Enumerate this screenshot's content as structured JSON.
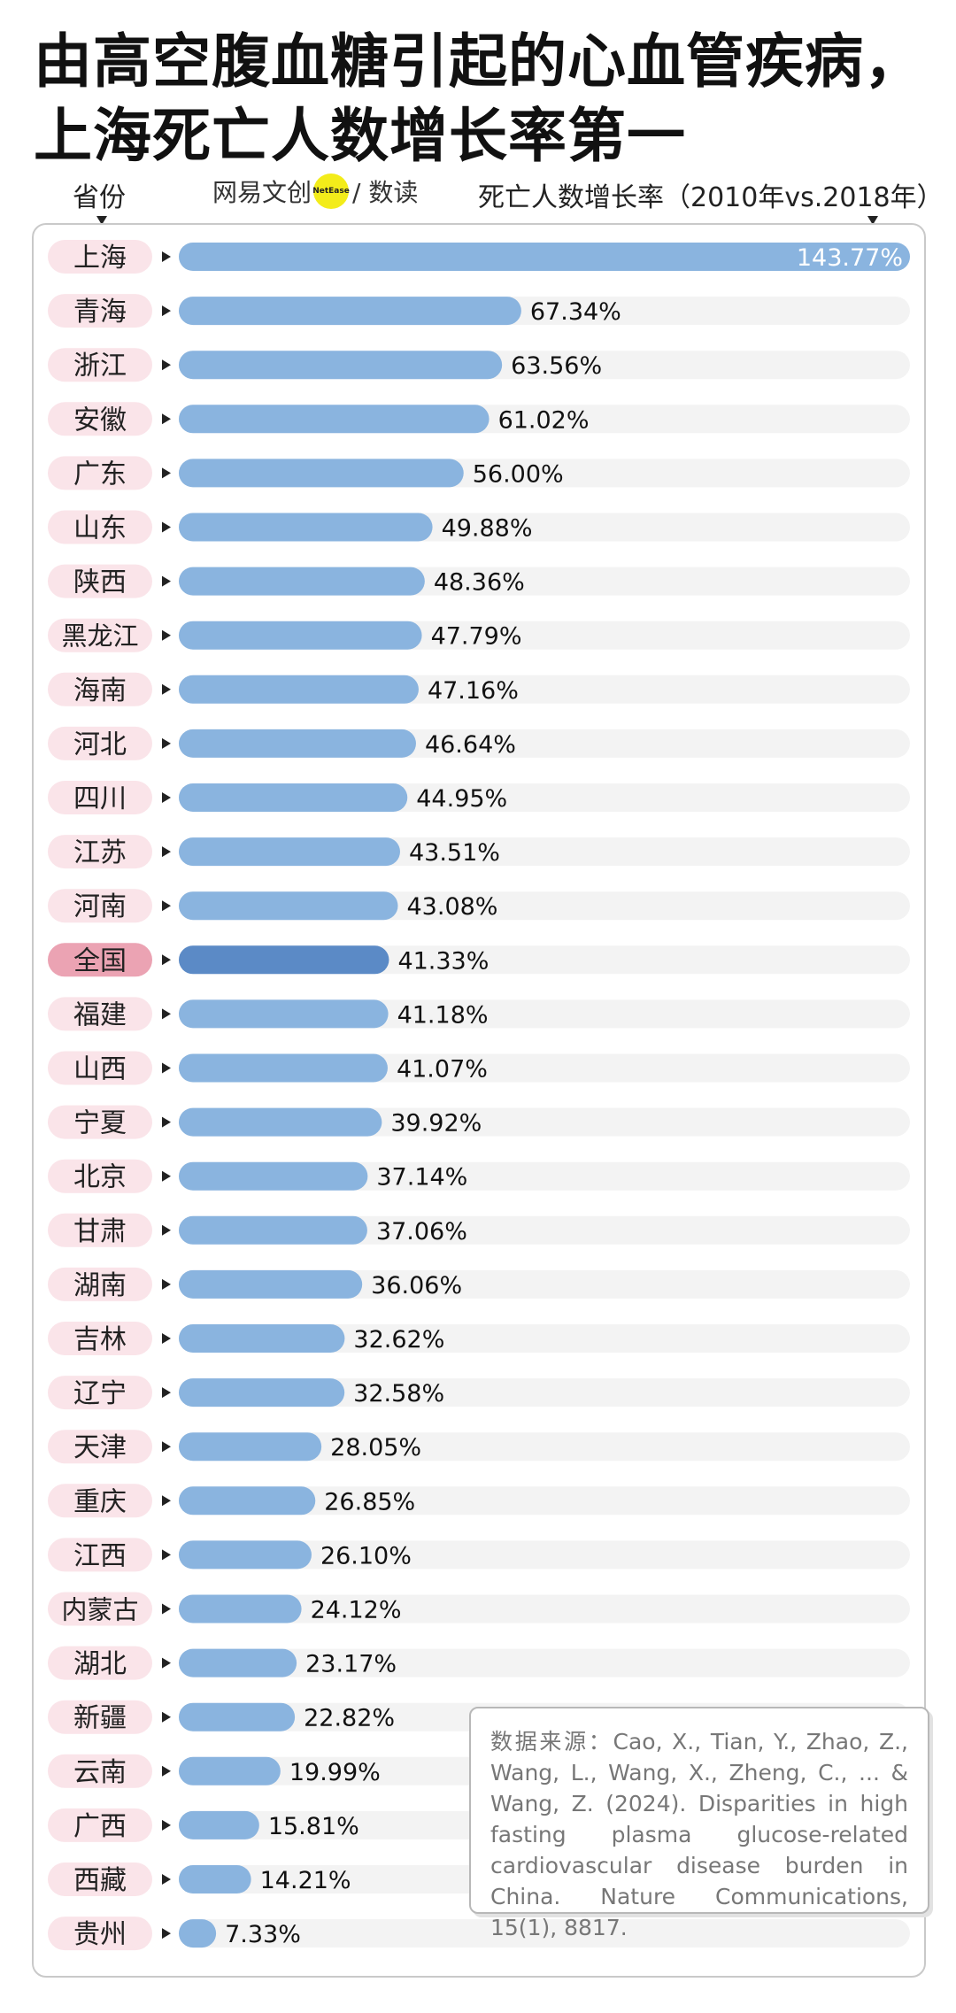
{
  "header": {
    "title_line1": "由高空腹血糖引起的心血管疾病，",
    "title_line2": "上海死亡人数增长率第一",
    "col_province": "省份",
    "col_rate": "死亡人数增长率（2010年vs.2018年）",
    "brand_name": "网易文创",
    "brand_dot": "NetEase",
    "brand_sub": "/ 数读"
  },
  "colors": {
    "bar": "#8ab4df",
    "bar_national": "#5b8ac6",
    "track": "#f3f3f3",
    "label_bg": "#fae4e9",
    "label_bg_national": "#eba3b3"
  },
  "chart_data": {
    "type": "bar",
    "orientation": "horizontal",
    "categories": [
      "上海",
      "青海",
      "浙江",
      "安徽",
      "广东",
      "山东",
      "陕西",
      "黑龙江",
      "海南",
      "河北",
      "四川",
      "江苏",
      "河南",
      "全国",
      "福建",
      "山西",
      "宁夏",
      "北京",
      "甘肃",
      "湖南",
      "吉林",
      "辽宁",
      "天津",
      "重庆",
      "江西",
      "内蒙古",
      "湖北",
      "新疆",
      "云南",
      "广西",
      "西藏",
      "贵州"
    ],
    "values": [
      143.77,
      67.34,
      63.56,
      61.02,
      56.0,
      49.88,
      48.36,
      47.79,
      47.16,
      46.64,
      44.95,
      43.51,
      43.08,
      41.33,
      41.18,
      41.07,
      39.92,
      37.14,
      37.06,
      36.06,
      32.62,
      32.58,
      28.05,
      26.85,
      26.1,
      24.12,
      23.17,
      22.82,
      19.99,
      15.81,
      14.21,
      7.33
    ],
    "value_labels": [
      "143.77%",
      "67.34%",
      "63.56%",
      "61.02%",
      "56.00%",
      "49.88%",
      "48.36%",
      "47.79%",
      "47.16%",
      "46.64%",
      "44.95%",
      "43.51%",
      "43.08%",
      "41.33%",
      "41.18%",
      "41.07%",
      "39.92%",
      "37.14%",
      "37.06%",
      "36.06%",
      "32.62%",
      "32.58%",
      "28.05%",
      "26.85%",
      "26.10%",
      "24.12%",
      "23.17%",
      "22.82%",
      "19.99%",
      "15.81%",
      "14.21%",
      "7.33%"
    ],
    "highlight": "全国",
    "xlim": [
      0,
      143.77
    ],
    "xlabel": "死亡人数增长率（2010年vs.2018年）",
    "ylabel": "省份"
  },
  "source": {
    "text": "数据来源：Cao, X., Tian, Y., Zhao, Z., Wang, L., Wang, X., Zheng, C., ... & Wang, Z. (2024). Disparities in high fasting plasma glucose-related cardiovascular disease burden in China. Nature Communications, 15(1), 8817."
  }
}
